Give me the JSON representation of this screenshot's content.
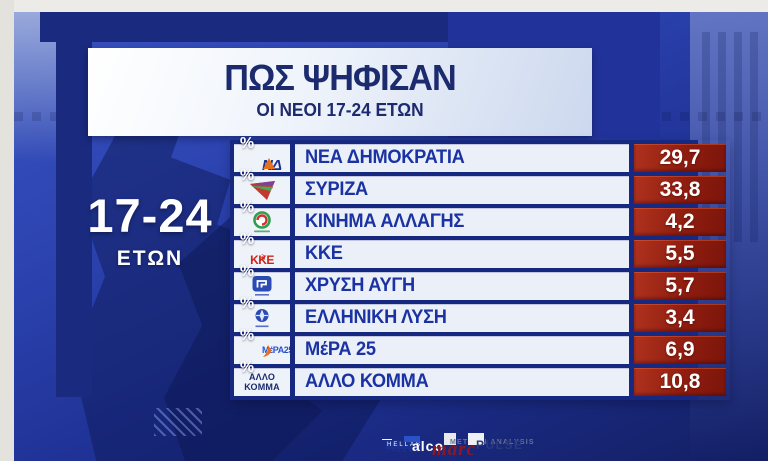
{
  "header": {
    "title": "ΠΩΣ ΨΗΦΙΣΑΝ",
    "subtitle": "ΟΙ ΝΕΟΙ 17-24 ΕΤΩΝ"
  },
  "age_group": {
    "range": "17-24",
    "unit": "ΕΤΩΝ"
  },
  "results": {
    "rows": [
      {
        "party": "ΝΕΑ ΔΗΜΟΚΡΑΤΙΑ",
        "value": "29,7",
        "unit": "%",
        "logo": {
          "type": "nd",
          "text": "ΝΔ"
        }
      },
      {
        "party": "ΣΥΡΙΖΑ",
        "value": "33,8",
        "unit": "%",
        "logo": {
          "type": "syriza",
          "text": ""
        }
      },
      {
        "party": "ΚΙΝΗΜΑ ΑΛΛΑΓΗΣ",
        "value": "4,2",
        "unit": "%",
        "logo": {
          "type": "kinal",
          "text": ""
        }
      },
      {
        "party": "ΚΚΕ",
        "value": "5,5",
        "unit": "%",
        "logo": {
          "type": "kke",
          "text": "ΚΚΕ"
        }
      },
      {
        "party": "ΧΡΥΣΗ ΑΥΓΗ",
        "value": "5,7",
        "unit": "%",
        "logo": {
          "type": "xa",
          "text": ""
        }
      },
      {
        "party": "ΕΛΛΗΝΙΚΗ ΛΥΣΗ",
        "value": "3,4",
        "unit": "%",
        "logo": {
          "type": "el",
          "text": ""
        }
      },
      {
        "party": "ΜέΡΑ 25",
        "value": "6,9",
        "unit": "%",
        "logo": {
          "type": "mera25",
          "text": "ΜέΡΑ25"
        }
      },
      {
        "party": "ΑΛΛΟ ΚΟΜΜΑ",
        "value": "10,8",
        "unit": "%",
        "logo": {
          "type": "other",
          "text": "ΑΛΛΟ ΚΟΜΜΑ"
        }
      }
    ]
  },
  "footer": {
    "pollsters": [
      {
        "type": "mrb",
        "text": "MRB",
        "subtext": "HELLAS"
      },
      {
        "type": "alco",
        "text": "alco",
        "subtext": ""
      },
      {
        "type": "marc",
        "text": "marc",
        "subtext": ""
      },
      {
        "type": "metron",
        "text": "METRON ANALYSIS",
        "subtext": ""
      },
      {
        "type": "pulse",
        "text": "PULSE",
        "subtext": ""
      }
    ]
  },
  "chart_data": {
    "type": "table",
    "title": "ΠΩΣ ΨΗΦΙΣΑΝ",
    "subtitle": "ΟΙ ΝΕΟΙ 17-24 ΕΤΩΝ",
    "group": "17-24 ΕΤΩΝ",
    "unit": "%",
    "categories": [
      "ΝΕΑ ΔΗΜΟΚΡΑΤΙΑ",
      "ΣΥΡΙΖΑ",
      "ΚΙΝΗΜΑ ΑΛΛΑΓΗΣ",
      "ΚΚΕ",
      "ΧΡΥΣΗ ΑΥΓΗ",
      "ΕΛΛΗΝΙΚΗ ΛΥΣΗ",
      "ΜέΡΑ 25",
      "ΑΛΛΟ ΚΟΜΜΑ"
    ],
    "values": [
      29.7,
      33.8,
      4.2,
      5.5,
      5.7,
      3.4,
      6.9,
      10.8
    ],
    "display_values": [
      "29,7",
      "33,8",
      "4,2",
      "5,5",
      "5,7",
      "3,4",
      "6,9",
      "10,8"
    ]
  },
  "colors": {
    "royal_blue": "#2c43b0",
    "navy": "#16287f",
    "accent_red": "#8f1d0f",
    "banner_text": "#1c2a6e",
    "party_text": "#1b32a2"
  }
}
